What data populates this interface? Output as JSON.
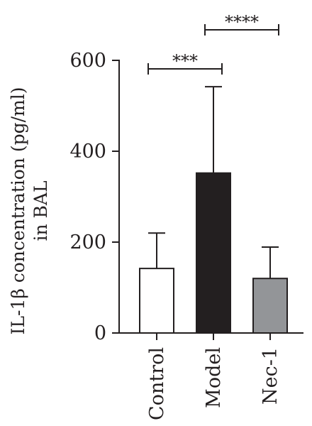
{
  "chart_data": {
    "type": "bar",
    "categories": [
      "Control",
      "Model",
      "Nec-1"
    ],
    "values": [
      142,
      352,
      120
    ],
    "error_upper": [
      220,
      542,
      189
    ],
    "bar_colors": [
      "#ffffff",
      "#231f20",
      "#939598"
    ],
    "ylim": [
      0,
      600
    ],
    "yticks": [
      0,
      200,
      400,
      600
    ],
    "ylabel_line1": "IL-1β concentration (pg/ml)",
    "ylabel_line2": "in BAL",
    "xlabel": "",
    "title": "",
    "grid": false,
    "significance": [
      {
        "from": "Control",
        "to": "Model",
        "label": "***"
      },
      {
        "from": "Model",
        "to": "Nec-1",
        "label": "****"
      }
    ]
  }
}
